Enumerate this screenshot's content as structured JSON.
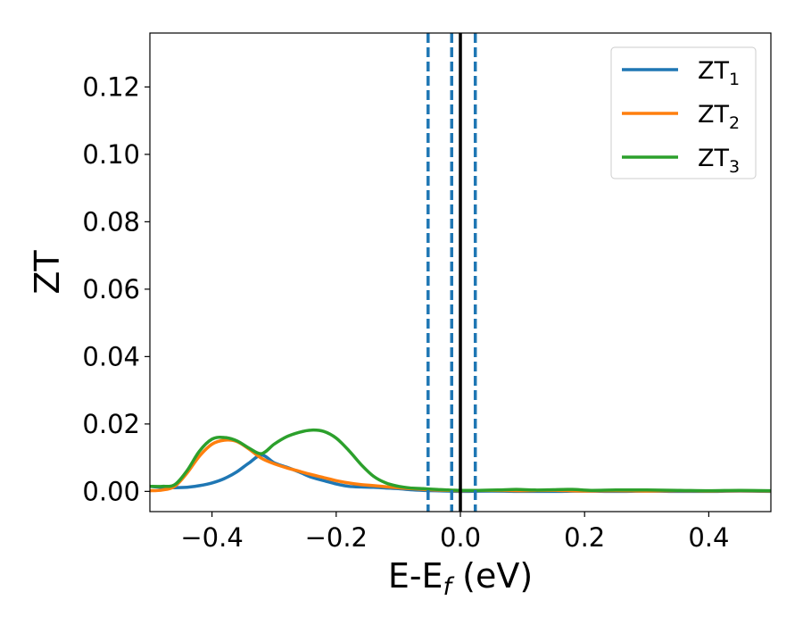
{
  "chart_data": {
    "type": "line",
    "xlabel": "E-E",
    "xlabel_subscript": "f",
    "xlabel_unit": " (eV)",
    "ylabel": "ZT",
    "xlim": [
      -0.5,
      0.5
    ],
    "ylim": [
      -0.006,
      0.136
    ],
    "x_ticks": [
      -0.4,
      -0.2,
      0.0,
      0.2,
      0.4
    ],
    "x_tick_labels": [
      "−0.4",
      "−0.2",
      "0.0",
      "0.2",
      "0.4"
    ],
    "y_ticks": [
      0.0,
      0.02,
      0.04,
      0.06,
      0.08,
      0.1,
      0.12
    ],
    "y_tick_labels": [
      "0.00",
      "0.02",
      "0.04",
      "0.06",
      "0.08",
      "0.10",
      "0.12"
    ],
    "grid": false,
    "legend_position": "top-right",
    "vertical_lines": [
      {
        "x": -0.052,
        "style": "dashed",
        "color": "#1f77b4"
      },
      {
        "x": -0.014,
        "style": "dashed",
        "color": "#1f77b4"
      },
      {
        "x": 0.0,
        "style": "solid",
        "color": "#000000"
      },
      {
        "x": 0.024,
        "style": "dashed",
        "color": "#1f77b4"
      }
    ],
    "series": [
      {
        "name": "ZT",
        "subscript": "1",
        "color": "#1f77b4",
        "x": [
          -0.5,
          -0.48,
          -0.46,
          -0.44,
          -0.42,
          -0.4,
          -0.38,
          -0.36,
          -0.34,
          -0.32,
          -0.3,
          -0.28,
          -0.26,
          -0.24,
          -0.22,
          -0.2,
          -0.18,
          -0.16,
          -0.14,
          -0.12,
          -0.1,
          -0.08,
          -0.06,
          -0.04,
          -0.02,
          0.0,
          0.05,
          0.1,
          0.15,
          0.2,
          0.25,
          0.3,
          0.35,
          0.4,
          0.45,
          0.5
        ],
        "y": [
          0.0015,
          0.0012,
          0.0011,
          0.0012,
          0.0017,
          0.0025,
          0.0038,
          0.0058,
          0.0085,
          0.0108,
          0.0085,
          0.0072,
          0.0058,
          0.0042,
          0.0032,
          0.0022,
          0.0015,
          0.0013,
          0.0012,
          0.001,
          0.0008,
          0.0005,
          0.0003,
          0.0002,
          0.0001,
          0.0,
          0.0001,
          0.0,
          0.0,
          0.0001,
          0.0,
          0.0001,
          0.0,
          0.0,
          0.0001,
          0.0
        ]
      },
      {
        "name": "ZT",
        "subscript": "2",
        "color": "#ff7f0e",
        "x": [
          -0.5,
          -0.48,
          -0.46,
          -0.44,
          -0.42,
          -0.4,
          -0.38,
          -0.36,
          -0.34,
          -0.32,
          -0.3,
          -0.28,
          -0.26,
          -0.24,
          -0.22,
          -0.2,
          -0.18,
          -0.16,
          -0.14,
          -0.12,
          -0.1,
          -0.08,
          -0.06,
          -0.04,
          -0.02,
          0.0,
          0.05,
          0.1,
          0.15,
          0.2,
          0.25,
          0.3,
          0.35,
          0.4,
          0.45,
          0.5
        ],
        "y": [
          0.0002,
          0.0004,
          0.0015,
          0.0055,
          0.0105,
          0.014,
          0.0152,
          0.0148,
          0.0125,
          0.0098,
          0.0082,
          0.007,
          0.006,
          0.005,
          0.0041,
          0.0032,
          0.0025,
          0.002,
          0.0017,
          0.0014,
          0.0011,
          0.0008,
          0.0006,
          0.0004,
          0.0003,
          0.0002,
          0.0003,
          0.0002,
          0.0003,
          0.0001,
          0.0002,
          0.0001,
          0.0002,
          0.0001,
          0.0002,
          0.0001
        ]
      },
      {
        "name": "ZT",
        "subscript": "3",
        "color": "#2ca02c",
        "x": [
          -0.5,
          -0.48,
          -0.46,
          -0.44,
          -0.42,
          -0.4,
          -0.38,
          -0.36,
          -0.34,
          -0.32,
          -0.3,
          -0.28,
          -0.26,
          -0.24,
          -0.22,
          -0.2,
          -0.18,
          -0.16,
          -0.14,
          -0.12,
          -0.1,
          -0.08,
          -0.06,
          -0.04,
          -0.02,
          0.0,
          0.03,
          0.06,
          0.09,
          0.12,
          0.15,
          0.18,
          0.21,
          0.25,
          0.3,
          0.35,
          0.4,
          0.45,
          0.5
        ],
        "y": [
          0.0015,
          0.0015,
          0.002,
          0.0062,
          0.012,
          0.0155,
          0.016,
          0.015,
          0.0128,
          0.0112,
          0.014,
          0.0162,
          0.0175,
          0.0182,
          0.0178,
          0.0158,
          0.0122,
          0.008,
          0.0045,
          0.0025,
          0.0015,
          0.001,
          0.0008,
          0.0006,
          0.0004,
          0.0003,
          0.0003,
          0.0004,
          0.0006,
          0.0004,
          0.0005,
          0.0006,
          0.0003,
          0.0004,
          0.0004,
          0.0003,
          0.0002,
          0.0003,
          0.0002
        ]
      }
    ]
  }
}
